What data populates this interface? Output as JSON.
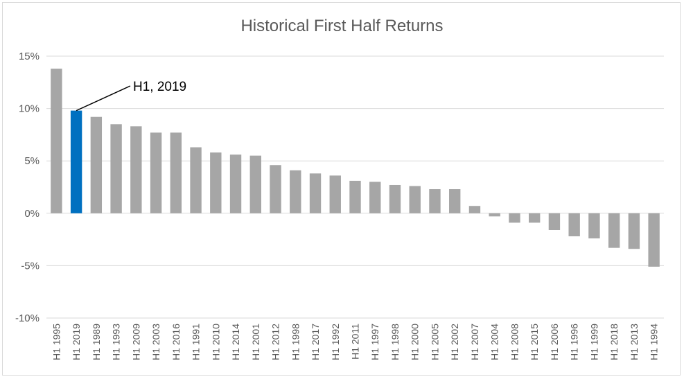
{
  "chart_data": {
    "type": "bar",
    "title": "Historical First Half Returns",
    "xlabel": "",
    "ylabel": "",
    "ylim": [
      -10,
      15
    ],
    "yticks": [
      15,
      10,
      5,
      0,
      -5,
      -10
    ],
    "ytick_labels": [
      "15%",
      "10%",
      "5%",
      "0%",
      "-5%",
      "-10%"
    ],
    "grid": true,
    "categories": [
      "H1 1995",
      "H1 2019",
      "H1 1989",
      "H1 1993",
      "H1 2009",
      "H1 2003",
      "H1 2016",
      "H1 1991",
      "H1 2010",
      "H1 2014",
      "H1 2001",
      "H1 2012",
      "H1 1998",
      "H1 2017",
      "H1 1992",
      "H1 2011",
      "H1 1997",
      "H1 1998",
      "H1 2000",
      "H1 2005",
      "H1 2002",
      "H1 2007",
      "H1 2004",
      "H1 2008",
      "H1 2015",
      "H1 2006",
      "H1 1996",
      "H1 1999",
      "H1 2018",
      "H1 2013",
      "H1 1994"
    ],
    "values": [
      13.8,
      9.8,
      9.2,
      8.5,
      8.3,
      7.7,
      7.7,
      6.3,
      5.8,
      5.6,
      5.5,
      4.6,
      4.1,
      3.8,
      3.6,
      3.1,
      3.0,
      2.7,
      2.6,
      2.3,
      2.3,
      0.7,
      -0.3,
      -0.9,
      -0.9,
      -1.6,
      -2.2,
      -2.4,
      -3.3,
      -3.4,
      -5.1
    ],
    "bar_color": "#a6a6a6",
    "highlight_color": "#0070c0",
    "highlight_index": 1,
    "annotation": {
      "text": "H1, 2019",
      "index": 1
    }
  }
}
